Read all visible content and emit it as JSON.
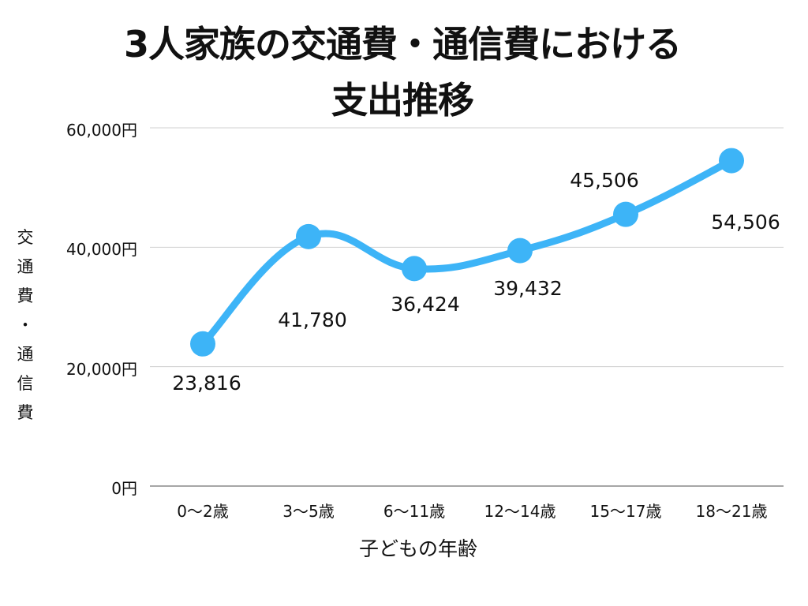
{
  "chart_data": {
    "type": "line",
    "title": "3人家族の交通費・通信費における支出推移",
    "title_lines": [
      "3人家族の交通費・通信費における",
      "支出推移"
    ],
    "xlabel": "子どもの年齢",
    "ylabel": "交通費・通信費",
    "ylabel_chars": [
      "交",
      "通",
      "費",
      "・",
      "通",
      "信",
      "費"
    ],
    "categories": [
      "0〜2歳",
      "3〜5歳",
      "6〜11歳",
      "12〜14歳",
      "15〜17歳",
      "18〜21歳"
    ],
    "series": [
      {
        "name": "交通費・通信費",
        "values": [
          23816,
          41780,
          36424,
          39432,
          45506,
          54506
        ],
        "color": "#3db4f7"
      }
    ],
    "data_labels": [
      "23,816",
      "41,780",
      "36,424",
      "39,432",
      "45,506",
      "54,506"
    ],
    "yticks": [
      0,
      20000,
      40000,
      60000
    ],
    "ytick_labels": [
      "0円",
      "20,000円",
      "40,000円",
      "60,000円"
    ],
    "ylim": [
      0,
      60000
    ],
    "grid": true,
    "legend": "none",
    "smooth": true
  }
}
